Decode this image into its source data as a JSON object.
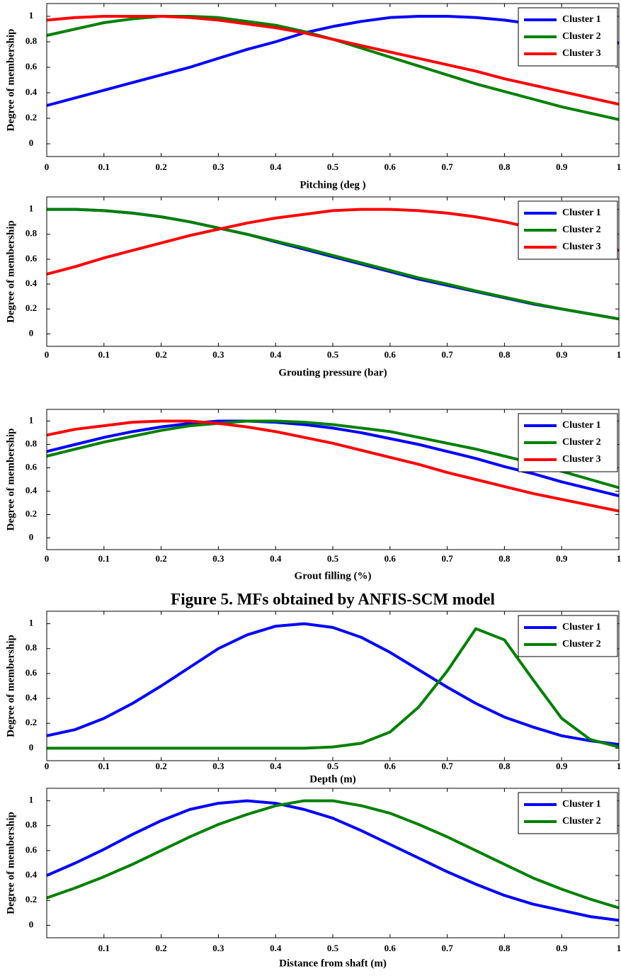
{
  "chart_data": [
    {
      "type": "line",
      "xlabel": "Pitching (deg )",
      "ylabel": "Degree of membership",
      "x": [
        0,
        0.05,
        0.1,
        0.15,
        0.2,
        0.25,
        0.3,
        0.35,
        0.4,
        0.45,
        0.5,
        0.55,
        0.6,
        0.65,
        0.7,
        0.75,
        0.8,
        0.85,
        0.9,
        0.95,
        1
      ],
      "series": [
        {
          "name": "Cluster 1",
          "color": "#0000ff",
          "values": [
            0.3,
            0.36,
            0.42,
            0.48,
            0.54,
            0.6,
            0.67,
            0.74,
            0.8,
            0.87,
            0.92,
            0.96,
            0.99,
            1.0,
            1.0,
            0.99,
            0.97,
            0.94,
            0.9,
            0.85,
            0.79
          ]
        },
        {
          "name": "Cluster 2",
          "color": "#008000",
          "values": [
            0.85,
            0.9,
            0.95,
            0.98,
            1.0,
            1.0,
            0.99,
            0.96,
            0.93,
            0.88,
            0.82,
            0.75,
            0.68,
            0.61,
            0.54,
            0.47,
            0.41,
            0.35,
            0.29,
            0.24,
            0.19
          ]
        },
        {
          "name": "Cluster 3",
          "color": "#ff0000",
          "values": [
            0.97,
            0.99,
            1.0,
            1.0,
            1.0,
            0.99,
            0.97,
            0.94,
            0.91,
            0.87,
            0.82,
            0.77,
            0.72,
            0.67,
            0.62,
            0.57,
            0.51,
            0.46,
            0.41,
            0.36,
            0.31
          ]
        }
      ],
      "xlim": [
        0,
        1
      ],
      "xticks": [
        0,
        0.1,
        0.2,
        0.3,
        0.4,
        0.5,
        0.6,
        0.7,
        0.8,
        0.9,
        1
      ],
      "ylim": [
        -0.1,
        1.1
      ],
      "yticks": [
        0,
        0.2,
        0.4,
        0.6,
        0.8,
        1
      ],
      "legend": "upper right"
    },
    {
      "type": "line",
      "xlabel": "Grouting pressure (bar)",
      "ylabel": "Degree of membership",
      "x": [
        0,
        0.05,
        0.1,
        0.15,
        0.2,
        0.25,
        0.3,
        0.35,
        0.4,
        0.45,
        0.5,
        0.55,
        0.6,
        0.65,
        0.7,
        0.75,
        0.8,
        0.85,
        0.9,
        0.95,
        1
      ],
      "series": [
        {
          "name": "Cluster 1",
          "color": "#0000ff",
          "values": [
            1.0,
            1.0,
            0.99,
            0.97,
            0.94,
            0.9,
            0.85,
            0.8,
            0.74,
            0.68,
            0.62,
            0.56,
            0.5,
            0.44,
            0.39,
            0.34,
            0.29,
            0.24,
            0.2,
            0.16,
            0.12
          ]
        },
        {
          "name": "Cluster 2",
          "color": "#008000",
          "values": [
            1.0,
            1.0,
            0.99,
            0.97,
            0.94,
            0.9,
            0.85,
            0.8,
            0.745,
            0.69,
            0.63,
            0.57,
            0.51,
            0.45,
            0.4,
            0.345,
            0.295,
            0.245,
            0.2,
            0.16,
            0.12
          ]
        },
        {
          "name": "Cluster 3",
          "color": "#ff0000",
          "values": [
            0.48,
            0.54,
            0.61,
            0.67,
            0.73,
            0.79,
            0.84,
            0.89,
            0.93,
            0.96,
            0.99,
            1.0,
            1.0,
            0.99,
            0.97,
            0.94,
            0.9,
            0.85,
            0.79,
            0.73,
            0.67
          ]
        }
      ],
      "xlim": [
        0,
        1
      ],
      "xticks": [
        0,
        0.1,
        0.2,
        0.3,
        0.4,
        0.5,
        0.6,
        0.7,
        0.8,
        0.9,
        1
      ],
      "ylim": [
        -0.1,
        1.1
      ],
      "yticks": [
        0,
        0.2,
        0.4,
        0.6,
        0.8,
        1
      ],
      "legend": "upper right"
    },
    {
      "type": "line",
      "xlabel": "Grout filling (%)",
      "ylabel": "Degree of membership",
      "x": [
        0,
        0.05,
        0.1,
        0.15,
        0.2,
        0.25,
        0.3,
        0.35,
        0.4,
        0.45,
        0.5,
        0.55,
        0.6,
        0.65,
        0.7,
        0.75,
        0.8,
        0.85,
        0.9,
        0.95,
        1
      ],
      "series": [
        {
          "name": "Cluster 1",
          "color": "#0000ff",
          "values": [
            0.74,
            0.8,
            0.86,
            0.91,
            0.95,
            0.98,
            1.0,
            1.0,
            0.99,
            0.97,
            0.94,
            0.9,
            0.85,
            0.8,
            0.74,
            0.68,
            0.61,
            0.55,
            0.48,
            0.42,
            0.36
          ]
        },
        {
          "name": "Cluster 2",
          "color": "#008000",
          "values": [
            0.7,
            0.76,
            0.82,
            0.87,
            0.92,
            0.96,
            0.98,
            1.0,
            1.0,
            0.99,
            0.97,
            0.94,
            0.91,
            0.86,
            0.81,
            0.76,
            0.7,
            0.64,
            0.57,
            0.5,
            0.43
          ]
        },
        {
          "name": "Cluster 3",
          "color": "#ff0000",
          "values": [
            0.88,
            0.93,
            0.96,
            0.99,
            1.0,
            1.0,
            0.98,
            0.95,
            0.91,
            0.86,
            0.81,
            0.75,
            0.69,
            0.63,
            0.56,
            0.5,
            0.44,
            0.38,
            0.33,
            0.28,
            0.23
          ]
        }
      ],
      "xlim": [
        0,
        1
      ],
      "xticks": [
        0,
        0.1,
        0.2,
        0.3,
        0.4,
        0.5,
        0.6,
        0.7,
        0.8,
        0.9,
        1
      ],
      "ylim": [
        -0.1,
        1.1
      ],
      "yticks": [
        0,
        0.2,
        0.4,
        0.6,
        0.8,
        1
      ],
      "legend": "upper right"
    },
    {
      "type": "line",
      "xlabel": "Depth (m)",
      "ylabel": "Degree of membership",
      "x": [
        0,
        0.05,
        0.1,
        0.15,
        0.2,
        0.25,
        0.3,
        0.35,
        0.4,
        0.45,
        0.5,
        0.55,
        0.6,
        0.65,
        0.7,
        0.75,
        0.8,
        0.85,
        0.9,
        0.95,
        1
      ],
      "series": [
        {
          "name": "Cluster 1",
          "color": "#0000ff",
          "values": [
            0.1,
            0.15,
            0.24,
            0.36,
            0.5,
            0.65,
            0.8,
            0.91,
            0.98,
            1.0,
            0.97,
            0.89,
            0.77,
            0.63,
            0.49,
            0.36,
            0.25,
            0.17,
            0.1,
            0.06,
            0.03
          ]
        },
        {
          "name": "Cluster 2",
          "color": "#008000",
          "values": [
            0,
            0,
            0,
            0,
            0,
            0,
            0,
            0,
            0,
            0,
            0.01,
            0.04,
            0.13,
            0.33,
            0.62,
            0.96,
            0.87,
            0.55,
            0.24,
            0.07,
            0.01
          ]
        }
      ],
      "xlim": [
        0,
        1
      ],
      "xticks": [
        0,
        0.1,
        0.2,
        0.3,
        0.4,
        0.5,
        0.6,
        0.7,
        0.8,
        0.9,
        1
      ],
      "ylim": [
        -0.1,
        1.1
      ],
      "yticks": [
        0,
        0.2,
        0.4,
        0.6,
        0.8,
        1
      ],
      "legend": "upper right"
    },
    {
      "type": "line",
      "xlabel": "Distance from shaft (m)",
      "ylabel": "Degree of membership",
      "x": [
        0,
        0.05,
        0.1,
        0.15,
        0.2,
        0.25,
        0.3,
        0.35,
        0.4,
        0.45,
        0.5,
        0.55,
        0.6,
        0.65,
        0.7,
        0.75,
        0.8,
        0.85,
        0.9,
        0.95,
        1
      ],
      "series": [
        {
          "name": "Cluster 1",
          "color": "#0000ff",
          "values": [
            0.4,
            0.5,
            0.61,
            0.73,
            0.84,
            0.93,
            0.98,
            1.0,
            0.98,
            0.93,
            0.86,
            0.76,
            0.65,
            0.54,
            0.43,
            0.33,
            0.24,
            0.17,
            0.12,
            0.07,
            0.04
          ]
        },
        {
          "name": "Cluster 2",
          "color": "#008000",
          "values": [
            0.22,
            0.3,
            0.39,
            0.49,
            0.6,
            0.71,
            0.81,
            0.89,
            0.96,
            1.0,
            1.0,
            0.96,
            0.9,
            0.81,
            0.71,
            0.6,
            0.49,
            0.38,
            0.29,
            0.21,
            0.14
          ]
        }
      ],
      "xlim": [
        0,
        1
      ],
      "xticks": [
        0.1,
        0.2,
        0.3,
        0.4,
        0.5,
        0.6,
        0.7,
        0.8,
        0.9,
        1
      ],
      "ylim": [
        -0.1,
        1.1
      ],
      "yticks": [
        0,
        0.2,
        0.4,
        0.6,
        0.8,
        1
      ],
      "legend": "upper right"
    }
  ],
  "caption": "Figure 5. MFs obtained by ANFIS-SCM model"
}
